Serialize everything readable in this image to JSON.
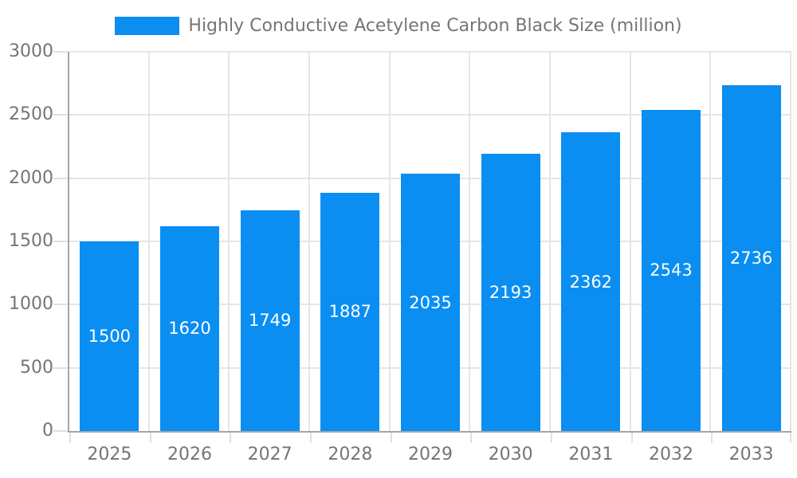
{
  "legend": {
    "label": "Highly Conductive Acetylene Carbon Black Size (million)",
    "swatch_color": "#0a8ef2"
  },
  "chart_data": {
    "type": "bar",
    "title": "Highly Conductive Acetylene Carbon Black Size (million)",
    "series": [
      {
        "name": "Highly Conductive Acetylene Carbon Black Size (million)",
        "values": [
          1500,
          1620,
          1749,
          1887,
          2035,
          2193,
          2362,
          2543,
          2736
        ]
      }
    ],
    "categories": [
      "2025",
      "2026",
      "2027",
      "2028",
      "2029",
      "2030",
      "2031",
      "2032",
      "2033"
    ],
    "xlabel": "",
    "ylabel": "",
    "ylim": [
      0,
      3000
    ],
    "y_ticks": [
      0,
      500,
      1000,
      1500,
      2000,
      2500,
      3000
    ],
    "grid": true,
    "legend_position": "top",
    "bar_color": "#0a8ef2",
    "bar_label_color": "#ffffff",
    "axis_text_color": "#757575"
  }
}
